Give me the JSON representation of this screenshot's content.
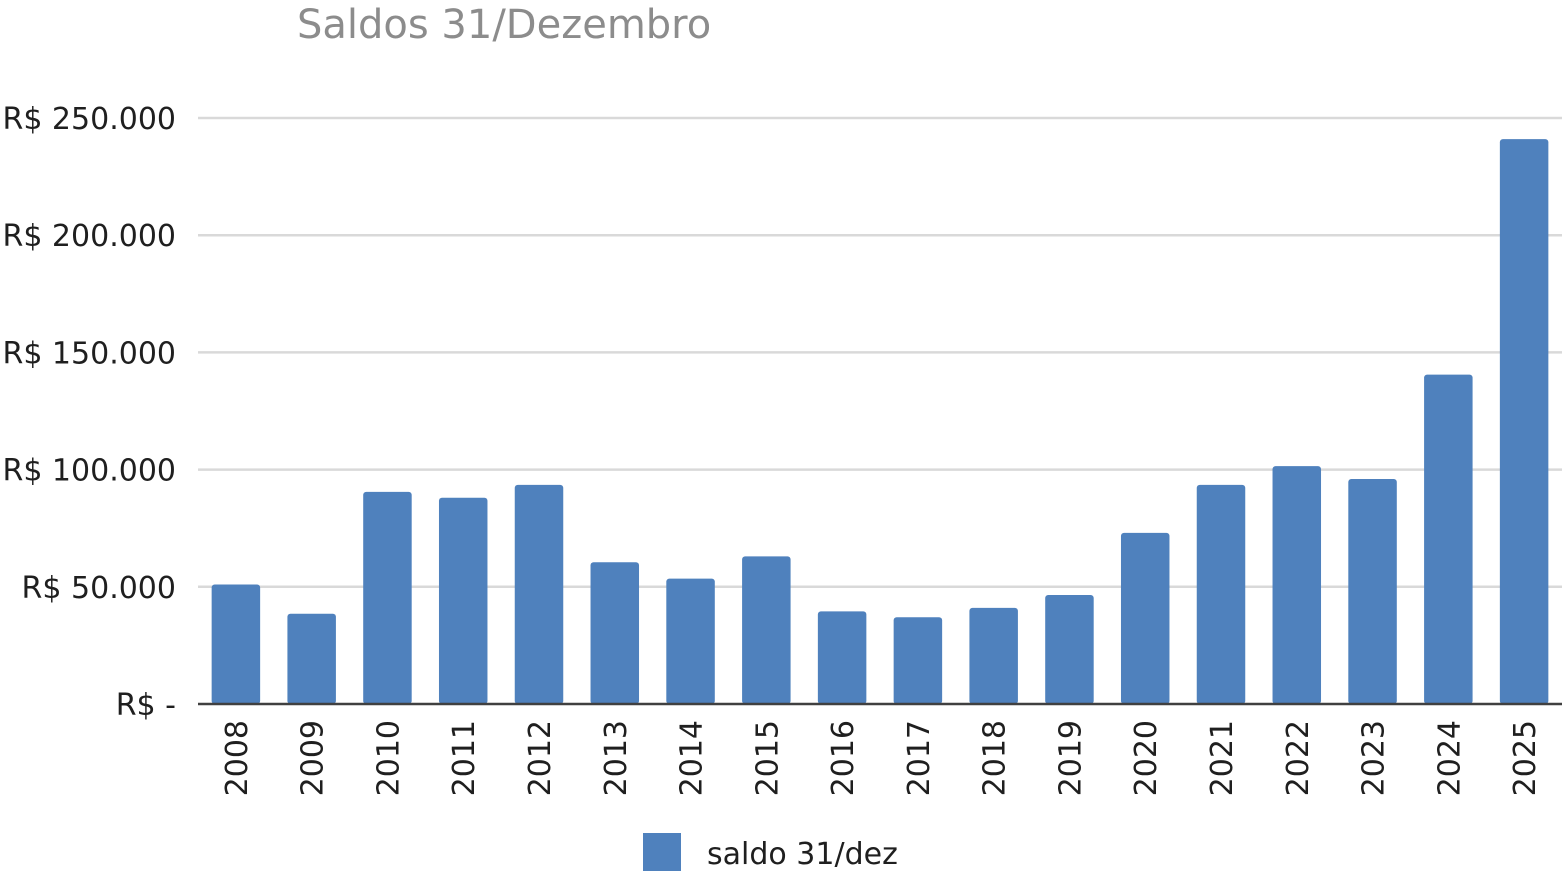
{
  "chart_data": {
    "type": "bar",
    "title": "Saldos 31/Dezembro",
    "xlabel": "",
    "ylabel": "",
    "categories": [
      "2008",
      "2009",
      "2010",
      "2011",
      "2012",
      "2013",
      "2014",
      "2015",
      "2016",
      "2017",
      "2018",
      "2019",
      "2020",
      "2021",
      "2022",
      "2023",
      "2024",
      "2025"
    ],
    "series": [
      {
        "name": "saldo 31/dez",
        "values": [
          51000,
          38500,
          90500,
          88000,
          93500,
          60500,
          53500,
          63000,
          39500,
          37000,
          41000,
          46500,
          73000,
          93500,
          101500,
          96000,
          140500,
          241000
        ]
      }
    ],
    "ylim": [
      0,
      250000
    ],
    "yticks": [
      0,
      50000,
      100000,
      150000,
      200000,
      250000
    ],
    "ytick_labels": [
      "R$ -",
      "R$ 50.000",
      "R$ 100.000",
      "R$ 150.000",
      "R$ 200.000",
      "R$ 250.000"
    ],
    "grid": true,
    "legend_position": "bottom",
    "bar_color": "#4f81bd"
  }
}
